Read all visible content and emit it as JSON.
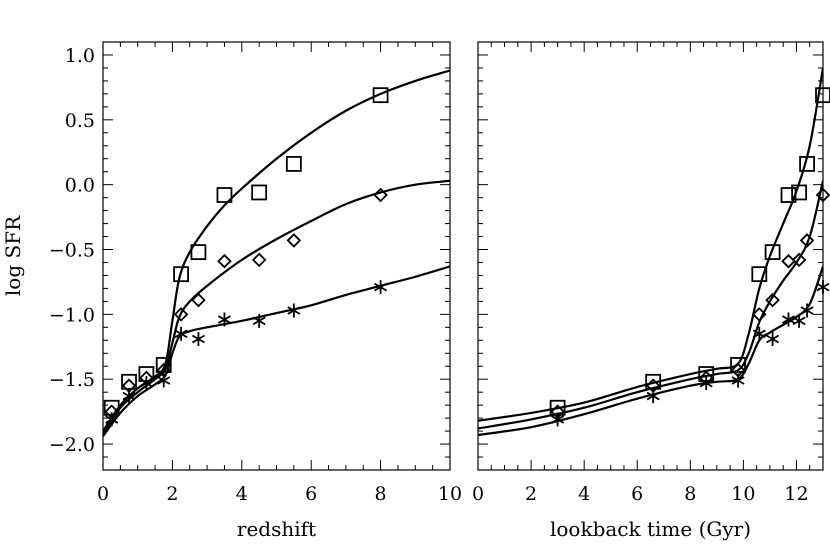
{
  "chart_data": [
    {
      "type": "scatter",
      "title": "",
      "xlabel": "redshift",
      "ylabel": "log SFR",
      "xlim": [
        0,
        10
      ],
      "ylim": [
        -2.2,
        1.1
      ],
      "xticks": [
        0,
        2,
        4,
        6,
        8,
        10
      ],
      "yticks": [
        -2.0,
        -1.5,
        -1.0,
        -0.5,
        0.0,
        0.5,
        1.0
      ],
      "xtick_labels": [
        "0",
        "2",
        "4",
        "6",
        "8",
        "10"
      ],
      "ytick_labels": [
        "−2.0",
        "−1.5",
        "−1.0",
        "−0.5",
        "0.0",
        "0.5",
        "1.0"
      ],
      "grid": false,
      "series": [
        {
          "marker": "square",
          "x": [
            0.25,
            0.75,
            1.25,
            1.75,
            2.25,
            2.75,
            3.5,
            4.5,
            5.5,
            8.0
          ],
          "y": [
            -1.72,
            -1.52,
            -1.46,
            -1.39,
            -0.69,
            -0.52,
            -0.08,
            -0.06,
            0.16,
            0.69
          ],
          "curve": [
            [
              0,
              -1.9
            ],
            [
              0.5,
              -1.7
            ],
            [
              1.0,
              -1.57
            ],
            [
              1.5,
              -1.48
            ],
            [
              1.8,
              -1.38
            ],
            [
              2.0,
              -1.05
            ],
            [
              2.2,
              -0.72
            ],
            [
              2.5,
              -0.52
            ],
            [
              3.0,
              -0.32
            ],
            [
              3.5,
              -0.16
            ],
            [
              4.0,
              -0.03
            ],
            [
              5.0,
              0.2
            ],
            [
              6.0,
              0.4
            ],
            [
              7.0,
              0.57
            ],
            [
              8.0,
              0.7
            ],
            [
              9.0,
              0.8
            ],
            [
              10.0,
              0.88
            ]
          ]
        },
        {
          "marker": "diamond",
          "x": [
            0.25,
            0.75,
            1.25,
            1.75,
            2.25,
            2.75,
            3.5,
            4.5,
            5.5,
            8.0
          ],
          "y": [
            -1.75,
            -1.55,
            -1.49,
            -1.43,
            -1.0,
            -0.89,
            -0.59,
            -0.58,
            -0.43,
            -0.08
          ],
          "curve": [
            [
              0,
              -1.92
            ],
            [
              0.5,
              -1.72
            ],
            [
              1.0,
              -1.6
            ],
            [
              1.5,
              -1.5
            ],
            [
              1.8,
              -1.42
            ],
            [
              2.0,
              -1.22
            ],
            [
              2.2,
              -1.02
            ],
            [
              2.5,
              -0.9
            ],
            [
              3.0,
              -0.78
            ],
            [
              4.0,
              -0.58
            ],
            [
              5.0,
              -0.42
            ],
            [
              6.0,
              -0.28
            ],
            [
              7.0,
              -0.15
            ],
            [
              8.0,
              -0.06
            ],
            [
              9.0,
              0.0
            ],
            [
              10.0,
              0.03
            ]
          ]
        },
        {
          "marker": "asterisk",
          "x": [
            0.25,
            0.75,
            1.25,
            1.75,
            2.25,
            2.75,
            3.5,
            4.5,
            5.5,
            8.0
          ],
          "y": [
            -1.81,
            -1.63,
            -1.53,
            -1.51,
            -1.15,
            -1.19,
            -1.04,
            -1.05,
            -0.97,
            -0.79
          ],
          "curve": [
            [
              0,
              -1.94
            ],
            [
              0.5,
              -1.76
            ],
            [
              1.0,
              -1.63
            ],
            [
              1.5,
              -1.54
            ],
            [
              1.8,
              -1.47
            ],
            [
              2.0,
              -1.3
            ],
            [
              2.2,
              -1.17
            ],
            [
              2.5,
              -1.13
            ],
            [
              3.0,
              -1.1
            ],
            [
              4.0,
              -1.05
            ],
            [
              5.0,
              -0.99
            ],
            [
              6.0,
              -0.93
            ],
            [
              7.0,
              -0.85
            ],
            [
              8.0,
              -0.78
            ],
            [
              9.0,
              -0.71
            ],
            [
              10.0,
              -0.63
            ]
          ]
        }
      ]
    },
    {
      "type": "scatter",
      "title": "",
      "xlabel": "lookback time (Gyr)",
      "ylabel": "",
      "xlim": [
        0,
        13
      ],
      "ylim": [
        -2.2,
        1.1
      ],
      "xticks": [
        0,
        2,
        4,
        6,
        8,
        10,
        12
      ],
      "xtick_labels": [
        "0",
        "2",
        "4",
        "6",
        "8",
        "10",
        "12"
      ],
      "grid": false,
      "series": [
        {
          "marker": "square",
          "x": [
            3.0,
            6.6,
            8.6,
            9.8,
            10.6,
            11.1,
            11.7,
            12.1,
            12.4,
            13.0
          ],
          "y": [
            -1.72,
            -1.52,
            -1.46,
            -1.39,
            -0.69,
            -0.52,
            -0.08,
            -0.06,
            0.16,
            0.69
          ],
          "curve": [
            [
              0,
              -1.82
            ],
            [
              2.0,
              -1.76
            ],
            [
              4.0,
              -1.68
            ],
            [
              6.0,
              -1.56
            ],
            [
              8.0,
              -1.46
            ],
            [
              9.0,
              -1.42
            ],
            [
              9.8,
              -1.38
            ],
            [
              10.2,
              -1.15
            ],
            [
              10.6,
              -0.8
            ],
            [
              11.0,
              -0.55
            ],
            [
              11.5,
              -0.3
            ],
            [
              12.0,
              -0.05
            ],
            [
              12.5,
              0.3
            ],
            [
              13.0,
              0.9
            ]
          ]
        },
        {
          "marker": "diamond",
          "x": [
            3.0,
            6.6,
            8.6,
            9.8,
            10.6,
            11.1,
            11.7,
            12.1,
            12.4,
            13.0
          ],
          "y": [
            -1.75,
            -1.55,
            -1.49,
            -1.43,
            -1.0,
            -0.89,
            -0.59,
            -0.58,
            -0.43,
            -0.08
          ],
          "curve": [
            [
              0,
              -1.88
            ],
            [
              2.0,
              -1.81
            ],
            [
              4.0,
              -1.72
            ],
            [
              6.0,
              -1.6
            ],
            [
              8.0,
              -1.5
            ],
            [
              9.0,
              -1.46
            ],
            [
              9.8,
              -1.43
            ],
            [
              10.2,
              -1.3
            ],
            [
              10.6,
              -1.06
            ],
            [
              11.0,
              -0.9
            ],
            [
              11.5,
              -0.74
            ],
            [
              12.0,
              -0.6
            ],
            [
              12.5,
              -0.4
            ],
            [
              13.0,
              0.03
            ]
          ]
        },
        {
          "marker": "asterisk",
          "x": [
            3.0,
            6.6,
            8.6,
            9.8,
            10.6,
            11.1,
            11.7,
            12.1,
            12.4,
            13.0
          ],
          "y": [
            -1.81,
            -1.63,
            -1.53,
            -1.51,
            -1.15,
            -1.19,
            -1.04,
            -1.05,
            -0.97,
            -0.79
          ],
          "curve": [
            [
              0,
              -1.93
            ],
            [
              2.0,
              -1.87
            ],
            [
              4.0,
              -1.77
            ],
            [
              6.0,
              -1.65
            ],
            [
              8.0,
              -1.55
            ],
            [
              9.0,
              -1.52
            ],
            [
              9.8,
              -1.5
            ],
            [
              10.2,
              -1.38
            ],
            [
              10.6,
              -1.2
            ],
            [
              11.0,
              -1.14
            ],
            [
              11.5,
              -1.08
            ],
            [
              12.0,
              -1.02
            ],
            [
              12.5,
              -0.92
            ],
            [
              13.0,
              -0.63
            ]
          ]
        }
      ]
    }
  ]
}
